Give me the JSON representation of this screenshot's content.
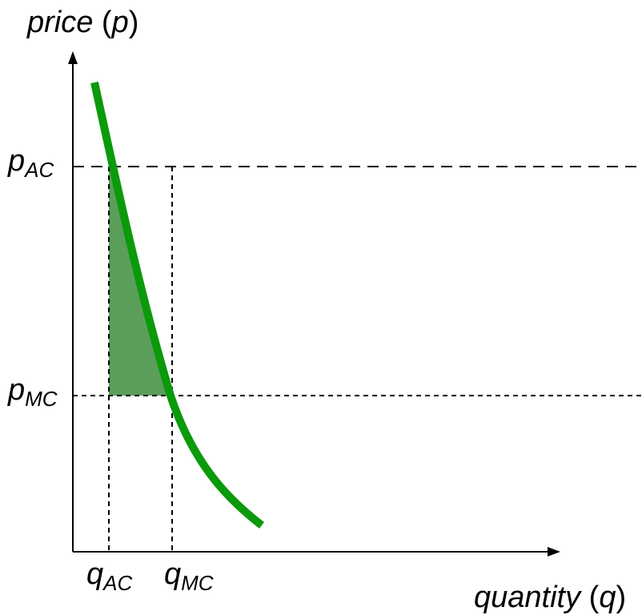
{
  "axes": {
    "y_title": {
      "italic": "price",
      "paren_open": " (",
      "symbol": "p",
      "paren_close": ")"
    },
    "x_title": {
      "italic": "quantity",
      "paren_open": " (",
      "symbol": "q",
      "paren_close": ")"
    }
  },
  "labels": {
    "p_ac": {
      "main": "p",
      "sub": "AC"
    },
    "p_mc": {
      "main": "p",
      "sub": "MC"
    },
    "q_ac": {
      "main": "q",
      "sub": "AC"
    },
    "q_mc": {
      "main": "q",
      "sub": "MC"
    }
  },
  "colors": {
    "demand_curve": "#0a9a0a",
    "shaded_area": "#5a9e5a",
    "axes": "#000000",
    "guides": "#000000"
  }
}
